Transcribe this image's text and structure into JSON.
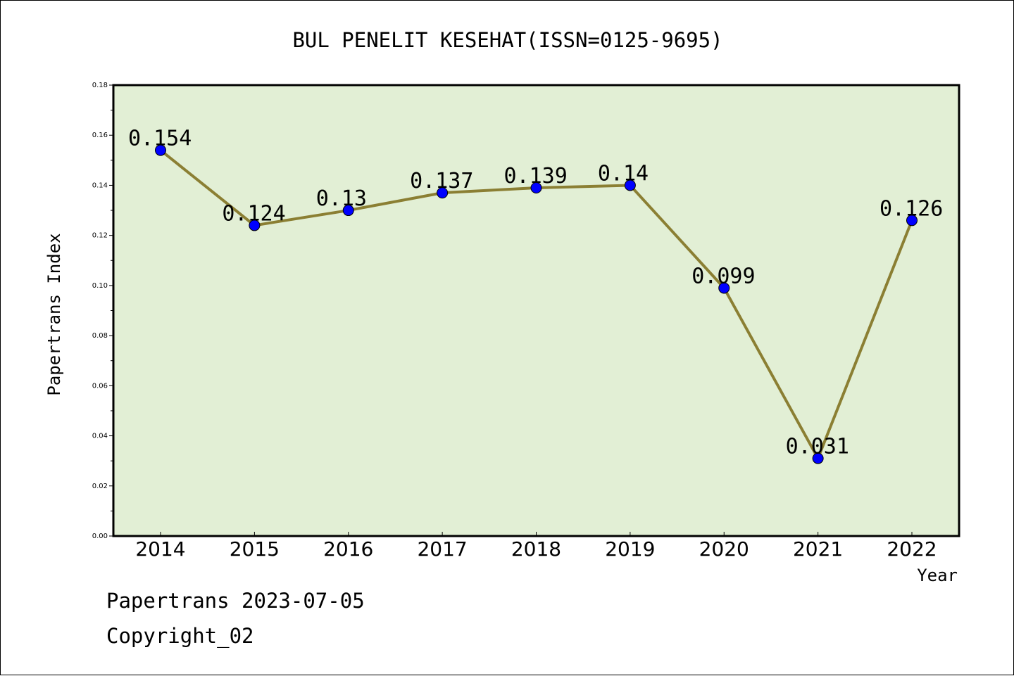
{
  "footer": {
    "line1": "Papertrans 2023-07-05",
    "line2": "Copyright_02"
  },
  "chart_data": {
    "type": "line",
    "title": "BUL PENELIT KESEHAT(ISSN=0125-9695)",
    "xlabel": "Year",
    "ylabel": "Papertrans Index",
    "categories": [
      "2014",
      "2015",
      "2016",
      "2017",
      "2018",
      "2019",
      "2020",
      "2021",
      "2022"
    ],
    "series": [
      {
        "values": [
          0.154,
          0.124,
          0.13,
          0.137,
          0.139,
          0.14,
          0.099,
          0.031,
          0.126
        ],
        "labels": [
          "0.154",
          "0.124",
          "0.13",
          "0.137",
          "0.139",
          "0.14",
          "0.099",
          "0.031",
          "0.126"
        ]
      }
    ],
    "ylim": [
      0,
      0.18
    ],
    "yticks": [
      "0.00",
      "0.02",
      "0.04",
      "0.06",
      "0.08",
      "0.10",
      "0.12",
      "0.14",
      "0.16",
      "0.18"
    ],
    "grid": false,
    "colors": {
      "plot_background": "#e2efd5",
      "line": "#8b7f33",
      "marker": "#0000ff"
    }
  }
}
